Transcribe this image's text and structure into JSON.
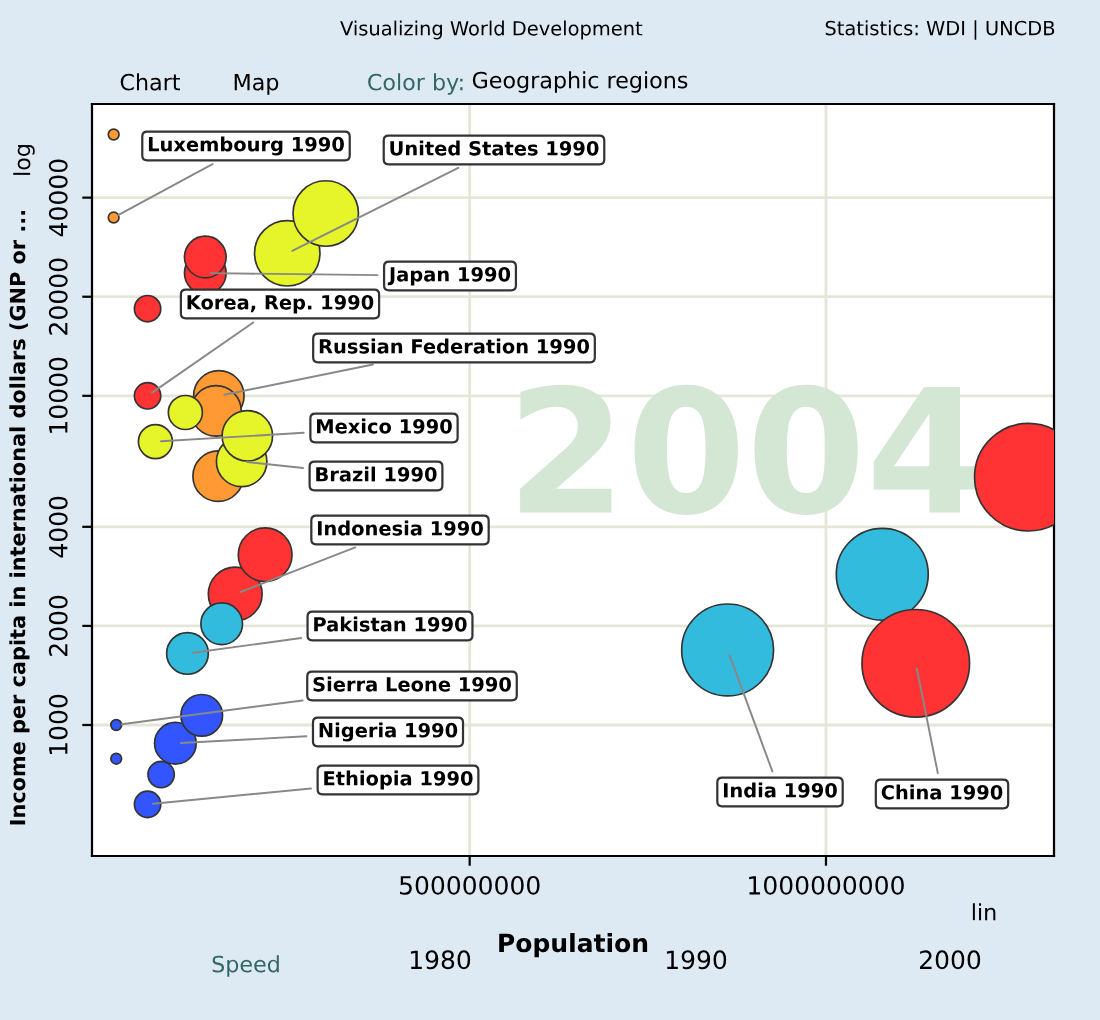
{
  "chart_data": {
    "type": "bubble",
    "title": "Visualizing World Development",
    "xlabel": "Population",
    "ylabel": "Income per capita in international dollars (GNP or ...",
    "xlim": [
      -30000000,
      1320000000
    ],
    "ylim": [
      400,
      77000
    ],
    "log": "y",
    "xticks": [
      500000000,
      1000000000
    ],
    "yticks": [
      1000,
      2000,
      4000,
      10000,
      20000,
      40000
    ],
    "grid": true,
    "marker": "circle",
    "series": [
      {
        "color": "#ff9933",
        "x": [
          400000,
          400000
        ],
        "values": [
          34800,
          62200
        ],
        "sizes": [
          0.01,
          0.01
        ]
      },
      {
        "color": "#e6f52a",
        "x": [
          244000000,
          298000000
        ],
        "values": [
          27100,
          35800
        ],
        "sizes": [
          0.37,
          0.37
        ]
      },
      {
        "color": "#ff3333",
        "x": [
          129000000,
          129000000
        ],
        "values": [
          23600,
          26400
        ],
        "sizes": [
          0.15,
          0.15
        ]
      },
      {
        "color": "#ff3333",
        "x": [
          48000000,
          48000000
        ],
        "values": [
          10000,
          18400
        ],
        "sizes": [
          0.06,
          0.06
        ]
      },
      {
        "color": "#ff9933",
        "x": [
          148000000,
          147000000,
          144000000
        ],
        "values": [
          10000,
          5700,
          9000
        ],
        "sizes": [
          0.22,
          0.22,
          0.22
        ]
      },
      {
        "color": "#e6f52a",
        "x": [
          59000000,
          101000000
        ],
        "values": [
          7260,
          8900
        ],
        "sizes": [
          0.1,
          0.1
        ]
      },
      {
        "color": "#e6f52a",
        "x": [
          180000000,
          188000000
        ],
        "values": [
          6320,
          7560
        ],
        "sizes": [
          0.22,
          0.22
        ]
      },
      {
        "color": "#ff3333",
        "x": [
          171000000,
          213000000
        ],
        "values": [
          2500,
          3290
        ],
        "sizes": [
          0.25,
          0.25
        ]
      },
      {
        "color": "#33bbdd",
        "x": [
          104000000,
          152000000
        ],
        "values": [
          1650,
          2030
        ],
        "sizes": [
          0.15,
          0.15
        ]
      },
      {
        "color": "#3355ff",
        "x": [
          4000000,
          4000000
        ],
        "values": [
          1000,
          790
        ],
        "sizes": [
          0.01,
          0.01
        ]
      },
      {
        "color": "#3355ff",
        "x": [
          87000000,
          124000000
        ],
        "values": [
          880,
          1070
        ],
        "sizes": [
          0.15,
          0.15
        ]
      },
      {
        "color": "#3355ff",
        "x": [
          48000000,
          67000000
        ],
        "values": [
          574,
          707
        ],
        "sizes": [
          0.06,
          0.06
        ]
      },
      {
        "color": "#33bbdd",
        "x": [
          862000000,
          1079000000
        ],
        "values": [
          1690,
          2870
        ],
        "sizes": [
          0.73,
          0.73
        ]
      },
      {
        "color": "#ff3333",
        "x": [
          1126000000,
          1284000000
        ],
        "values": [
          1540,
          5660
        ],
        "sizes": [
          1,
          1
        ]
      }
    ],
    "annotations": [
      {
        "text": "Luxembourg 1990",
        "x": 400000,
        "y": 34800
      },
      {
        "text": "United States 1990",
        "x": 244000000,
        "y": 27100
      },
      {
        "text": "Japan 1990",
        "x": 129000000,
        "y": 23600
      },
      {
        "text": "Korea, Rep. 1990",
        "x": 48000000,
        "y": 10000
      },
      {
        "text": "Russian Federation 1990",
        "x": 148000000,
        "y": 10000
      },
      {
        "text": "Mexico 1990",
        "x": 59000000,
        "y": 7260
      },
      {
        "text": "Brazil 1990",
        "x": 180000000,
        "y": 6320
      },
      {
        "text": "Indonesia 1990",
        "x": 171000000,
        "y": 2500
      },
      {
        "text": "Pakistan 1990",
        "x": 104000000,
        "y": 1650
      },
      {
        "text": "Sierra Leone 1990",
        "x": 4000000,
        "y": 1000
      },
      {
        "text": "Nigeria 1990",
        "x": 87000000,
        "y": 880
      },
      {
        "text": "Ethiopia 1990",
        "x": 48000000,
        "y": 574
      },
      {
        "text": "India 1990",
        "x": 862000000,
        "y": 1690
      },
      {
        "text": "China 1990",
        "x": 1126000000,
        "y": 1540
      },
      "2004",
      "Statistics: WDI | UNCDB",
      "Chart",
      "Map",
      "Color by:",
      "Geographic regions",
      "log",
      "lin",
      "Speed",
      "1980",
      "1990",
      "2000"
    ]
  }
}
